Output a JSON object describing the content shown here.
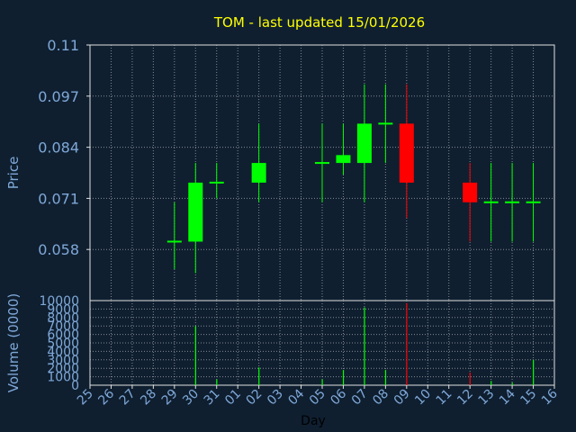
{
  "chart_data": [
    {
      "type": "candlestick",
      "title": "TOM - last updated 15/01/2026",
      "ylabel": "Price",
      "xlabel": "Day",
      "ylim": [
        0.045,
        0.11
      ],
      "yticks": [
        "0.058",
        "0.071",
        "0.084",
        "0.097",
        "0.11"
      ],
      "grid": true,
      "categories": [
        "25",
        "26",
        "27",
        "28",
        "29",
        "30",
        "31",
        "01",
        "02",
        "03",
        "04",
        "05",
        "06",
        "07",
        "08",
        "09",
        "10",
        "11",
        "12",
        "13",
        "14",
        "15",
        "16"
      ],
      "candles": [
        {
          "x": "29",
          "open": 0.06,
          "high": 0.07,
          "low": 0.053,
          "close": 0.06
        },
        {
          "x": "30",
          "open": 0.06,
          "high": 0.08,
          "low": 0.052,
          "close": 0.075
        },
        {
          "x": "31",
          "open": 0.075,
          "high": 0.08,
          "low": 0.071,
          "close": 0.075
        },
        {
          "x": "02",
          "open": 0.075,
          "high": 0.09,
          "low": 0.07,
          "close": 0.08
        },
        {
          "x": "05",
          "open": 0.08,
          "high": 0.09,
          "low": 0.07,
          "close": 0.08
        },
        {
          "x": "06",
          "open": 0.08,
          "high": 0.09,
          "low": 0.077,
          "close": 0.082
        },
        {
          "x": "07",
          "open": 0.08,
          "high": 0.1,
          "low": 0.07,
          "close": 0.09
        },
        {
          "x": "08",
          "open": 0.09,
          "high": 0.1,
          "low": 0.08,
          "close": 0.09
        },
        {
          "x": "09",
          "open": 0.09,
          "high": 0.1,
          "low": 0.066,
          "close": 0.075
        },
        {
          "x": "12",
          "open": 0.075,
          "high": 0.08,
          "low": 0.06,
          "close": 0.07
        },
        {
          "x": "13",
          "open": 0.07,
          "high": 0.08,
          "low": 0.06,
          "close": 0.07
        },
        {
          "x": "14",
          "open": 0.07,
          "high": 0.08,
          "low": 0.06,
          "close": 0.07
        },
        {
          "x": "15",
          "open": 0.07,
          "high": 0.08,
          "low": 0.06,
          "close": 0.07
        }
      ],
      "colors": {
        "up": "#00ff00",
        "down": "#ff0000",
        "background": "#0f1f30",
        "grid": "#d0d0d0",
        "title": "#ffff00",
        "labels": "#7fa8d8"
      }
    },
    {
      "type": "bar",
      "ylabel": "Volume (0000)",
      "ylim": [
        0,
        10000
      ],
      "yticks": [
        "0",
        "1000",
        "2000",
        "3000",
        "4000",
        "5000",
        "6000",
        "7000",
        "8000",
        "9000",
        "10000"
      ],
      "grid": true,
      "values": [
        {
          "x": "29",
          "value": 0,
          "color": "#00ff00"
        },
        {
          "x": "30",
          "value": 7000,
          "color": "#00ff00"
        },
        {
          "x": "31",
          "value": 700,
          "color": "#00ff00"
        },
        {
          "x": "02",
          "value": 2100,
          "color": "#00ff00"
        },
        {
          "x": "05",
          "value": 700,
          "color": "#00ff00"
        },
        {
          "x": "06",
          "value": 1800,
          "color": "#00ff00"
        },
        {
          "x": "07",
          "value": 9200,
          "color": "#00ff00"
        },
        {
          "x": "08",
          "value": 1800,
          "color": "#00ff00"
        },
        {
          "x": "09",
          "value": 9700,
          "color": "#ff0000"
        },
        {
          "x": "12",
          "value": 1500,
          "color": "#ff0000"
        },
        {
          "x": "13",
          "value": 500,
          "color": "#00ff00"
        },
        {
          "x": "14",
          "value": 300,
          "color": "#00ff00"
        },
        {
          "x": "15",
          "value": 3000,
          "color": "#00ff00"
        }
      ]
    }
  ]
}
